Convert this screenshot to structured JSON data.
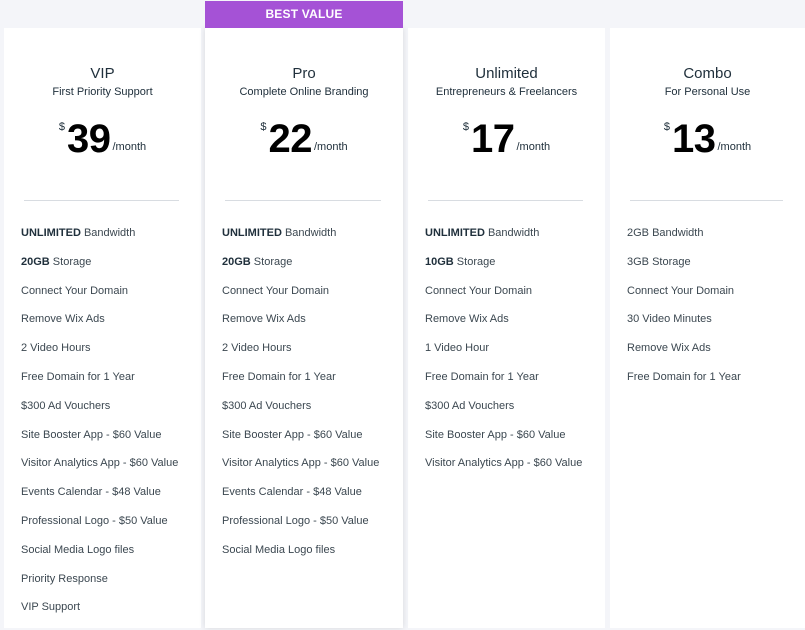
{
  "ribbon": {
    "label": "BEST VALUE"
  },
  "plans": [
    {
      "name": "VIP",
      "tagline": "First Priority Support",
      "currency": "$",
      "price": "39",
      "period": "/month",
      "features": [
        {
          "bold": "UNLIMITED",
          "text": " Bandwidth"
        },
        {
          "bold": "20GB",
          "text": " Storage"
        },
        {
          "bold": "",
          "text": "Connect Your Domain"
        },
        {
          "bold": "",
          "text": "Remove Wix Ads"
        },
        {
          "bold": "",
          "text": "2 Video Hours"
        },
        {
          "bold": "",
          "text": "Free Domain for 1 Year"
        },
        {
          "bold": "",
          "text": "$300 Ad Vouchers"
        },
        {
          "bold": "",
          "text": "Site Booster App - $60 Value"
        },
        {
          "bold": "",
          "text": "Visitor Analytics App - $60 Value"
        },
        {
          "bold": "",
          "text": "Events Calendar - $48 Value"
        },
        {
          "bold": "",
          "text": "Professional Logo - $50 Value"
        },
        {
          "bold": "",
          "text": "Social Media Logo files"
        },
        {
          "bold": "",
          "text": "Priority Response"
        },
        {
          "bold": "",
          "text": "VIP Support"
        }
      ]
    },
    {
      "name": "Pro",
      "tagline": "Complete Online Branding",
      "currency": "$",
      "price": "22",
      "period": "/month",
      "features": [
        {
          "bold": "UNLIMITED",
          "text": " Bandwidth"
        },
        {
          "bold": "20GB",
          "text": " Storage"
        },
        {
          "bold": "",
          "text": "Connect Your Domain"
        },
        {
          "bold": "",
          "text": "Remove Wix Ads"
        },
        {
          "bold": "",
          "text": "2 Video Hours"
        },
        {
          "bold": "",
          "text": "Free Domain for 1 Year"
        },
        {
          "bold": "",
          "text": "$300 Ad Vouchers"
        },
        {
          "bold": "",
          "text": "Site Booster App - $60 Value"
        },
        {
          "bold": "",
          "text": "Visitor Analytics App - $60 Value"
        },
        {
          "bold": "",
          "text": "Events Calendar - $48 Value"
        },
        {
          "bold": "",
          "text": "Professional Logo - $50 Value"
        },
        {
          "bold": "",
          "text": "Social Media Logo files"
        }
      ]
    },
    {
      "name": "Unlimited",
      "tagline": "Entrepreneurs & Freelancers",
      "currency": "$",
      "price": "17",
      "period": "/month",
      "features": [
        {
          "bold": "UNLIMITED",
          "text": " Bandwidth"
        },
        {
          "bold": "10GB",
          "text": " Storage"
        },
        {
          "bold": "",
          "text": "Connect Your Domain"
        },
        {
          "bold": "",
          "text": "Remove Wix Ads"
        },
        {
          "bold": "",
          "text": "1 Video Hour"
        },
        {
          "bold": "",
          "text": "Free Domain for 1 Year"
        },
        {
          "bold": "",
          "text": "$300 Ad Vouchers"
        },
        {
          "bold": "",
          "text": "Site Booster App - $60 Value"
        },
        {
          "bold": "",
          "text": "Visitor Analytics App - $60 Value"
        }
      ]
    },
    {
      "name": "Combo",
      "tagline": "For Personal Use",
      "currency": "$",
      "price": "13",
      "period": "/month",
      "features": [
        {
          "bold": "",
          "text": "2GB Bandwidth"
        },
        {
          "bold": "",
          "text": "3GB Storage"
        },
        {
          "bold": "",
          "text": "Connect Your Domain"
        },
        {
          "bold": "",
          "text": "30 Video Minutes"
        },
        {
          "bold": "",
          "text": "Remove Wix Ads"
        },
        {
          "bold": "",
          "text": "Free Domain for 1 Year"
        }
      ]
    }
  ]
}
